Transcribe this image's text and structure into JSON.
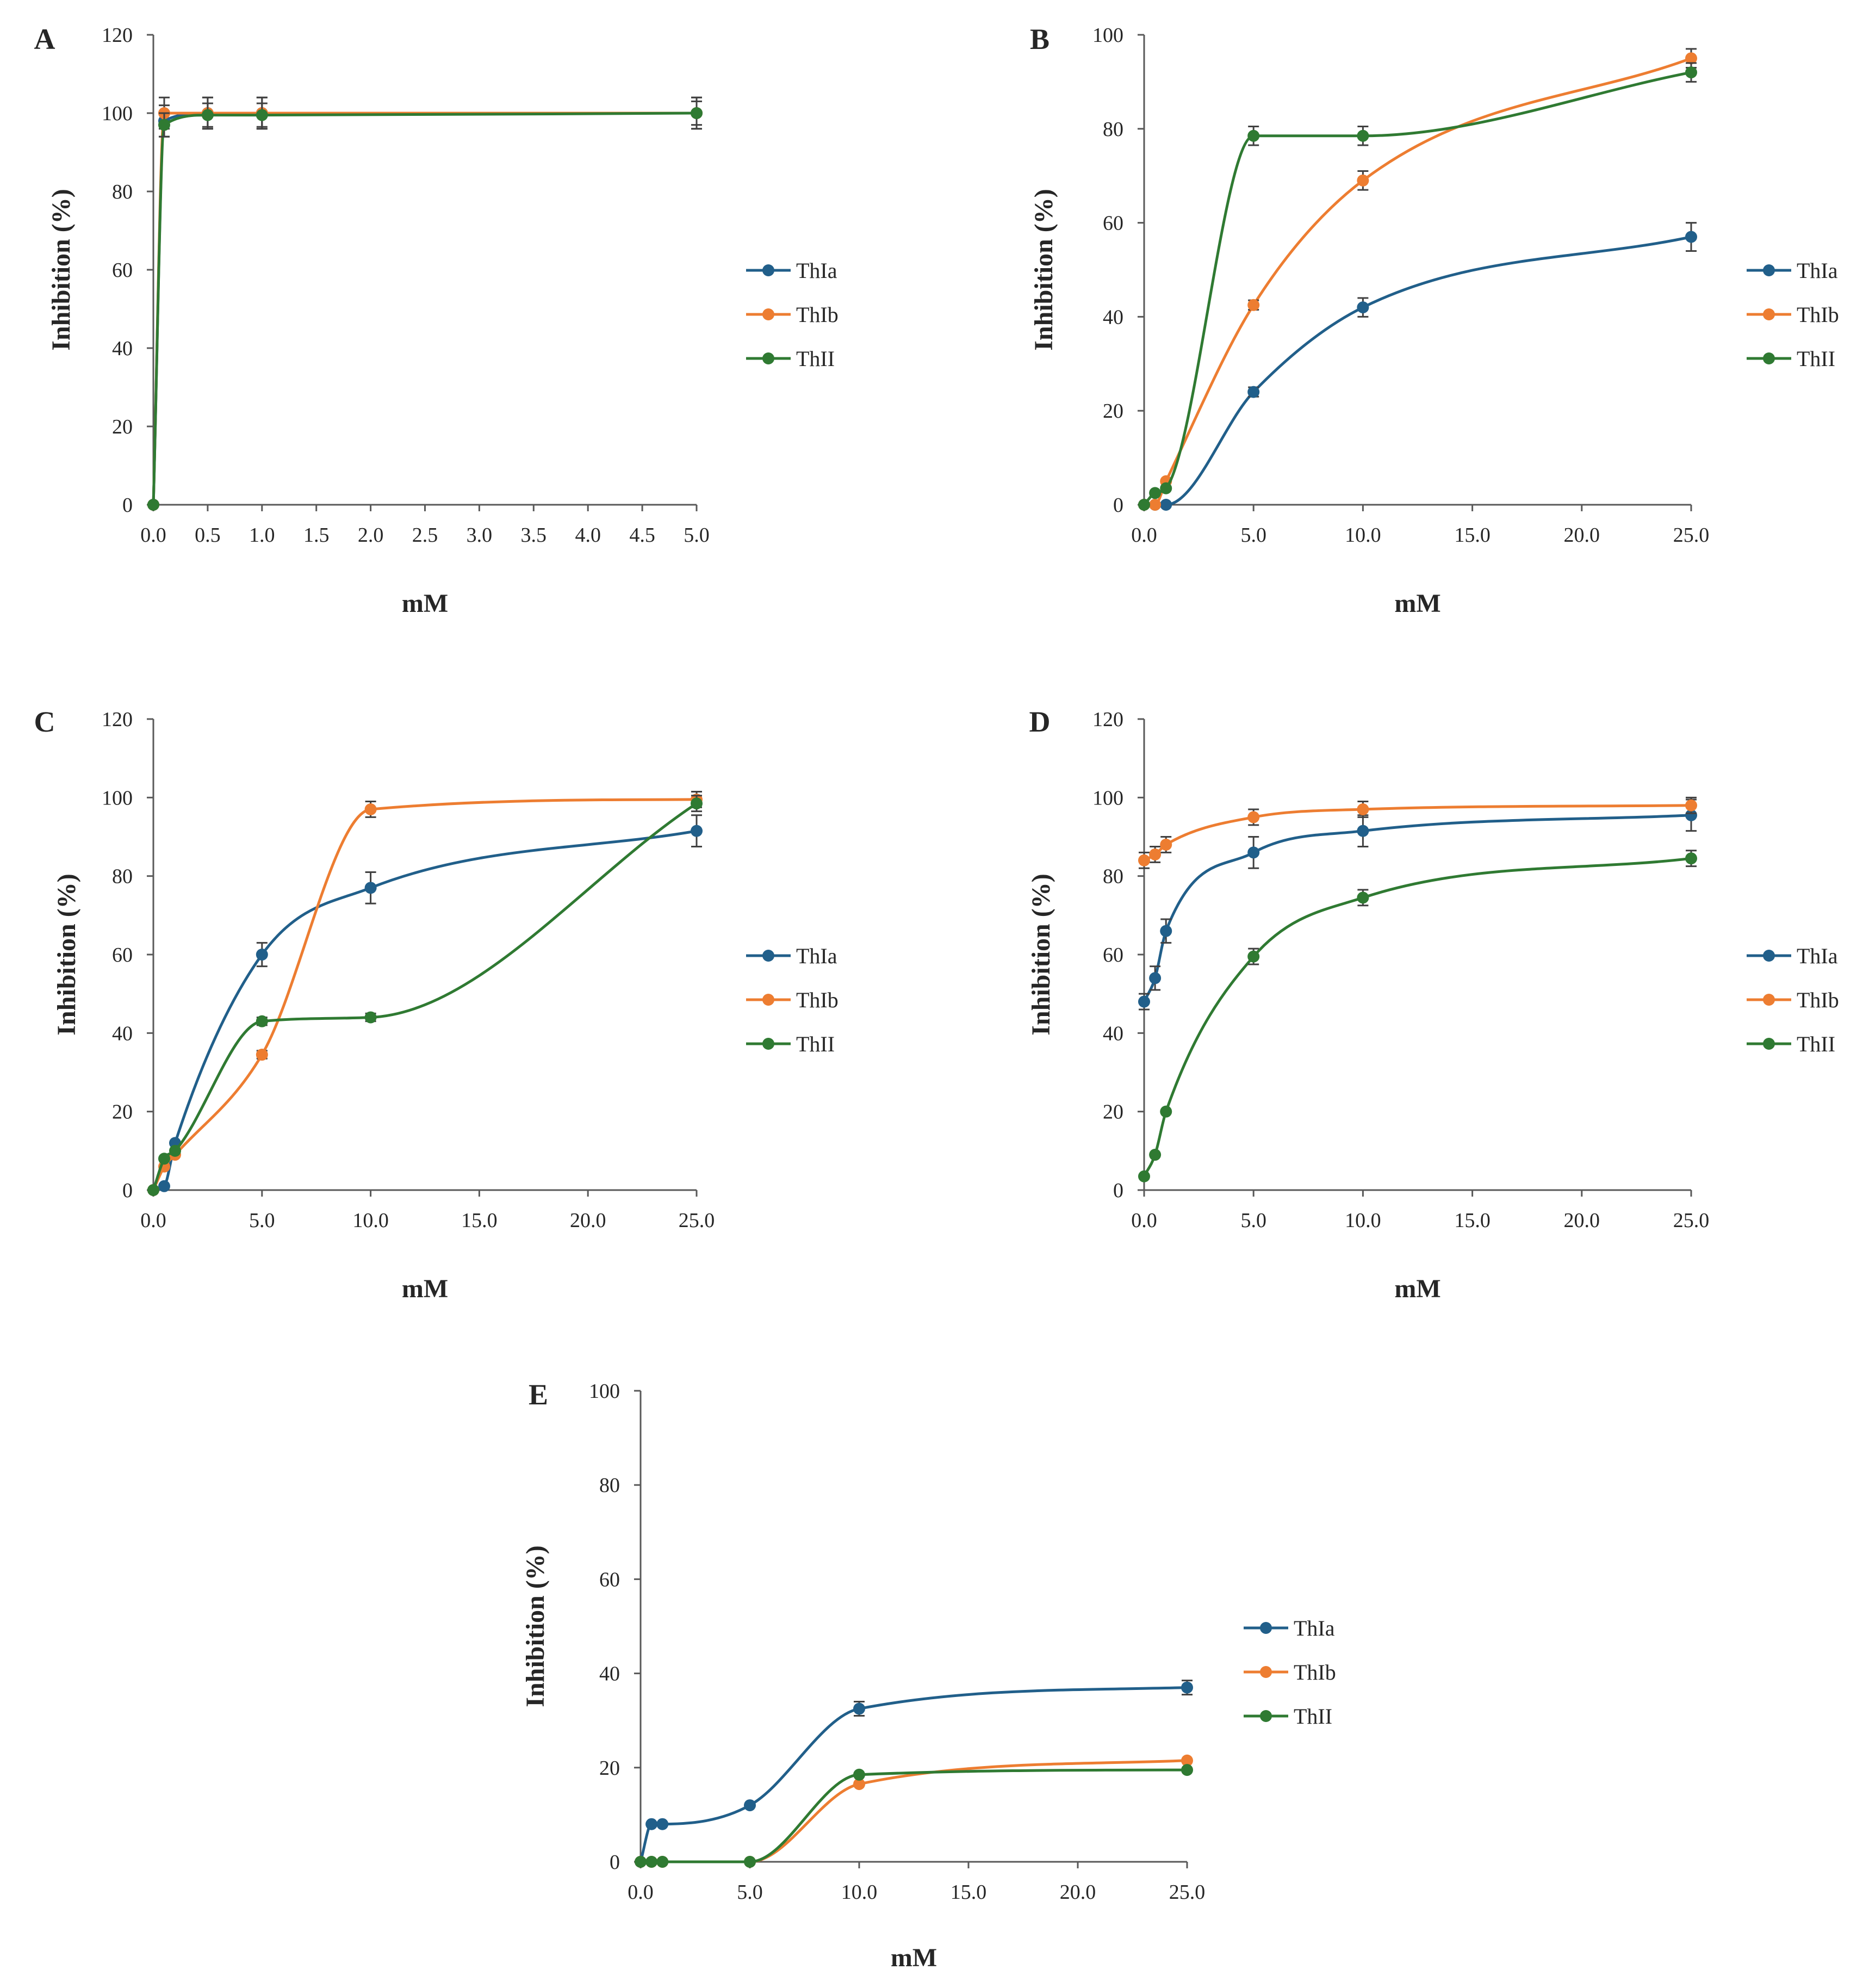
{
  "colors": {
    "ThIa": "#215f8a",
    "ThIb": "#ed7d31",
    "ThII": "#2f7a32",
    "axis": "#595959",
    "errorbar": "#404040"
  },
  "series_names": [
    "ThIa",
    "ThIb",
    "ThII"
  ],
  "chart_data": [
    {
      "panel": "A",
      "type": "line",
      "xlabel": "mM",
      "ylabel": "Inhibition  (%)",
      "xlim": [
        0,
        5
      ],
      "ylim": [
        0,
        120
      ],
      "xticks": [
        0,
        0.5,
        1,
        1.5,
        2,
        2.5,
        3,
        3.5,
        4,
        4.5,
        5
      ],
      "xtick_labels": [
        "0.0",
        "0.5",
        "1.0",
        "1.5",
        "2.0",
        "2.5",
        "3.0",
        "3.5",
        "4.0",
        "4.5",
        "5.0"
      ],
      "yticks": [
        0,
        20,
        40,
        60,
        80,
        100,
        120
      ],
      "ytick_labels": [
        "0",
        "20",
        "40",
        "60",
        "80",
        "100",
        "120"
      ],
      "legend": "right",
      "series": [
        {
          "name": "ThIa",
          "x": [
            0,
            0.1,
            0.5,
            1,
            5
          ],
          "y": [
            0,
            98,
            100,
            100,
            100
          ],
          "err": [
            0,
            4,
            4,
            4,
            4
          ]
        },
        {
          "name": "ThIb",
          "x": [
            0,
            0.1,
            0.5,
            1,
            5
          ],
          "y": [
            0,
            100,
            100,
            100,
            100
          ],
          "err": [
            0,
            4,
            4,
            4,
            4
          ]
        },
        {
          "name": "ThII",
          "x": [
            0,
            0.1,
            0.5,
            1,
            5
          ],
          "y": [
            0,
            97,
            99.5,
            99.5,
            100
          ],
          "err": [
            0,
            3,
            3,
            3,
            3
          ]
        }
      ]
    },
    {
      "panel": "B",
      "type": "line",
      "xlabel": "mM",
      "ylabel": "Inhibition  (%)",
      "xlim": [
        0,
        25
      ],
      "ylim": [
        0,
        100
      ],
      "xticks": [
        0,
        5,
        10,
        15,
        20,
        25
      ],
      "xtick_labels": [
        "0.0",
        "5.0",
        "10.0",
        "15.0",
        "20.0",
        "25.0"
      ],
      "yticks": [
        0,
        20,
        40,
        60,
        80,
        100
      ],
      "ytick_labels": [
        "0",
        "20",
        "40",
        "60",
        "80",
        "100"
      ],
      "legend": "right",
      "series": [
        {
          "name": "ThIa",
          "x": [
            0,
            0.5,
            1,
            5,
            10,
            25
          ],
          "y": [
            0,
            0,
            0,
            24,
            42,
            57
          ],
          "err": [
            0,
            0,
            0,
            1,
            2,
            3
          ]
        },
        {
          "name": "ThIb",
          "x": [
            0,
            0.5,
            1,
            5,
            10,
            25
          ],
          "y": [
            0,
            0,
            5,
            42.5,
            69,
            95
          ],
          "err": [
            0,
            0,
            0,
            1,
            2,
            2
          ]
        },
        {
          "name": "ThII",
          "x": [
            0,
            0.5,
            1,
            5,
            10,
            25
          ],
          "y": [
            0,
            2.5,
            3.5,
            78.5,
            78.5,
            92
          ],
          "err": [
            0,
            0,
            0,
            2,
            2,
            2
          ]
        }
      ]
    },
    {
      "panel": "C",
      "type": "line",
      "xlabel": "mM",
      "ylabel": "Inhibition  (%)",
      "xlim": [
        0,
        25
      ],
      "ylim": [
        0,
        120
      ],
      "xticks": [
        0,
        5,
        10,
        15,
        20,
        25
      ],
      "xtick_labels": [
        "0.0",
        "5.0",
        "10.0",
        "15.0",
        "20.0",
        "25.0"
      ],
      "yticks": [
        0,
        20,
        40,
        60,
        80,
        100,
        120
      ],
      "ytick_labels": [
        "0",
        "20",
        "40",
        "60",
        "80",
        "100",
        "120"
      ],
      "legend": "right",
      "series": [
        {
          "name": "ThIa",
          "x": [
            0,
            0.5,
            1,
            5,
            10,
            25
          ],
          "y": [
            0,
            1,
            12,
            60,
            77,
            91.5
          ],
          "err": [
            0,
            0,
            0,
            3,
            4,
            4
          ]
        },
        {
          "name": "ThIb",
          "x": [
            0,
            0.5,
            1,
            5,
            10,
            25
          ],
          "y": [
            0,
            6,
            9,
            34.5,
            97,
            99.5
          ],
          "err": [
            0,
            0,
            0,
            1,
            2,
            2
          ]
        },
        {
          "name": "ThII",
          "x": [
            0,
            0.5,
            1,
            5,
            10,
            25
          ],
          "y": [
            0,
            8,
            10,
            43,
            44,
            98.5
          ],
          "err": [
            0,
            0,
            0,
            1,
            1,
            2
          ]
        }
      ]
    },
    {
      "panel": "D",
      "type": "line",
      "xlabel": "mM",
      "ylabel": "Inhibition  (%)",
      "xlim": [
        0,
        25
      ],
      "ylim": [
        0,
        120
      ],
      "xticks": [
        0,
        5,
        10,
        15,
        20,
        25
      ],
      "xtick_labels": [
        "0.0",
        "5.0",
        "10.0",
        "15.0",
        "20.0",
        "25.0"
      ],
      "yticks": [
        0,
        20,
        40,
        60,
        80,
        100,
        120
      ],
      "ytick_labels": [
        "0",
        "20",
        "40",
        "60",
        "80",
        "100",
        "120"
      ],
      "legend": "right",
      "series": [
        {
          "name": "ThIa",
          "x": [
            0,
            0.5,
            1,
            5,
            10,
            25
          ],
          "y": [
            48,
            54,
            66,
            86,
            91.5,
            95.5
          ],
          "err": [
            2,
            3,
            3,
            4,
            4,
            4
          ]
        },
        {
          "name": "ThIb",
          "x": [
            0,
            0.5,
            1,
            5,
            10,
            25
          ],
          "y": [
            84,
            85.5,
            88,
            95,
            97,
            98
          ],
          "err": [
            2,
            2,
            2,
            2,
            2,
            2
          ]
        },
        {
          "name": "ThII",
          "x": [
            0,
            0.5,
            1,
            5,
            10,
            25
          ],
          "y": [
            3.5,
            9,
            20,
            59.5,
            74.5,
            84.5
          ],
          "err": [
            0,
            0,
            0,
            2,
            2,
            2
          ]
        }
      ]
    },
    {
      "panel": "E",
      "type": "line",
      "xlabel": "mM",
      "ylabel": "Inhibition  (%)",
      "xlim": [
        0,
        25
      ],
      "ylim": [
        0,
        100
      ],
      "xticks": [
        0,
        5,
        10,
        15,
        20,
        25
      ],
      "xtick_labels": [
        "0.0",
        "5.0",
        "10.0",
        "15.0",
        "20.0",
        "25.0"
      ],
      "yticks": [
        0,
        20,
        40,
        60,
        80,
        100
      ],
      "ytick_labels": [
        "0",
        "20",
        "40",
        "60",
        "80",
        "100"
      ],
      "legend": "right",
      "series": [
        {
          "name": "ThIa",
          "x": [
            0,
            0.5,
            1,
            5,
            10,
            25
          ],
          "y": [
            0,
            8,
            8,
            12,
            32.5,
            37
          ],
          "err": [
            0,
            0,
            0,
            0,
            1.5,
            1.5
          ]
        },
        {
          "name": "ThIb",
          "x": [
            0,
            0.5,
            1,
            5,
            10,
            25
          ],
          "y": [
            0,
            0,
            0,
            0,
            16.5,
            21.5
          ],
          "err": [
            0,
            0,
            0,
            0,
            0,
            0
          ]
        },
        {
          "name": "ThII",
          "x": [
            0,
            0.5,
            1,
            5,
            10,
            25
          ],
          "y": [
            0,
            0,
            0,
            0,
            18.5,
            19.5
          ],
          "err": [
            0,
            0,
            0,
            0,
            0,
            0
          ]
        }
      ]
    }
  ]
}
